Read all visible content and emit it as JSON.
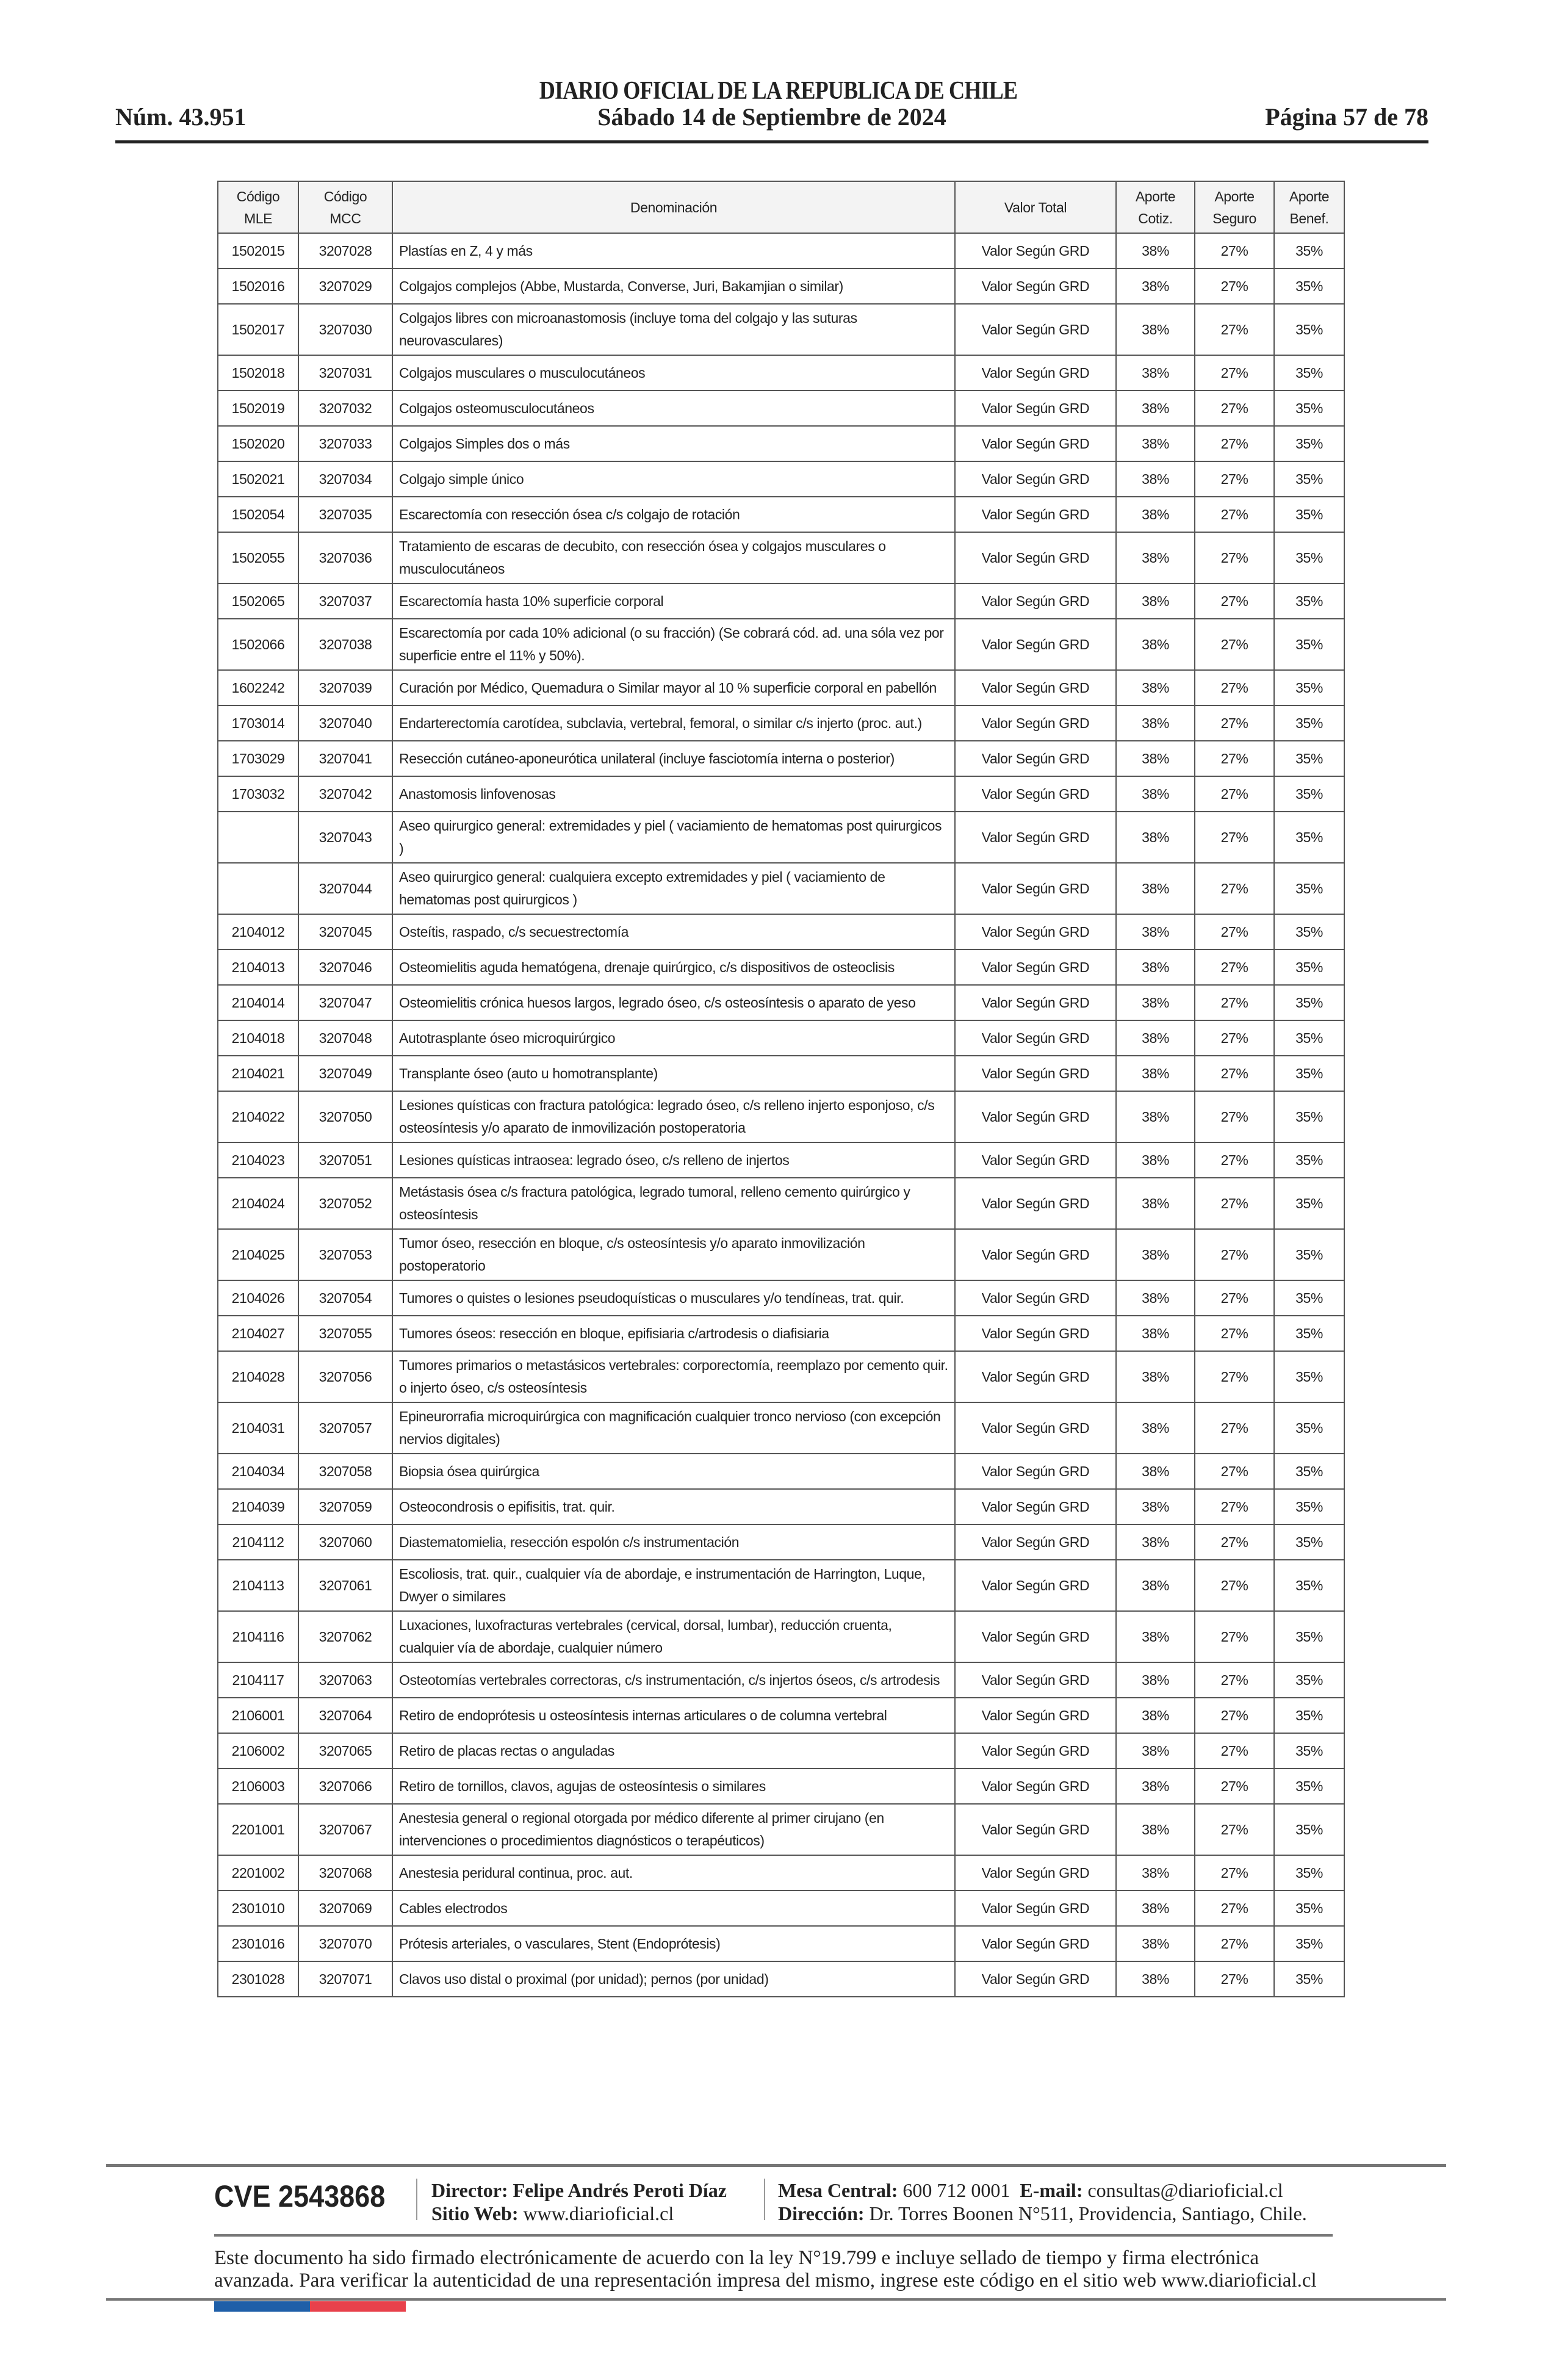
{
  "header": {
    "masthead": "DIARIO OFICIAL DE LA REPUBLICA DE CHILE",
    "issue_number": "Núm. 43.951",
    "date": "Sábado 14 de Septiembre de 2024",
    "page": "Página 57 de 78"
  },
  "table": {
    "headers": {
      "codigo_mle": [
        "Código",
        "MLE"
      ],
      "codigo_mcc": [
        "Código",
        "MCC"
      ],
      "denominacion": "Denominación",
      "valor_total": "Valor Total",
      "aporte_cotiz": [
        "Aporte",
        "Cotiz."
      ],
      "aporte_seguro": [
        "Aporte",
        "Seguro"
      ],
      "aporte_benef": [
        "Aporte",
        "Benef."
      ]
    },
    "rows": [
      {
        "mle": "1502015",
        "mcc": "3207028",
        "den": "Plastías en Z, 4 y más",
        "valor": "Valor Según GRD",
        "cotiz": "38%",
        "seguro": "27%",
        "benef": "35%"
      },
      {
        "mle": "1502016",
        "mcc": "3207029",
        "den": "Colgajos complejos (Abbe, Mustarda, Converse, Juri, Bakamjian o similar)",
        "valor": "Valor Según GRD",
        "cotiz": "38%",
        "seguro": "27%",
        "benef": "35%"
      },
      {
        "mle": "1502017",
        "mcc": "3207030",
        "den": "Colgajos libres con microanastomosis (incluye toma del colgajo y las suturas neurovasculares)",
        "valor": "Valor Según GRD",
        "cotiz": "38%",
        "seguro": "27%",
        "benef": "35%"
      },
      {
        "mle": "1502018",
        "mcc": "3207031",
        "den": "Colgajos musculares o musculocutáneos",
        "valor": "Valor Según GRD",
        "cotiz": "38%",
        "seguro": "27%",
        "benef": "35%"
      },
      {
        "mle": "1502019",
        "mcc": "3207032",
        "den": "Colgajos osteomusculocutáneos",
        "valor": "Valor Según GRD",
        "cotiz": "38%",
        "seguro": "27%",
        "benef": "35%"
      },
      {
        "mle": "1502020",
        "mcc": "3207033",
        "den": "Colgajos Simples dos o más",
        "valor": "Valor Según GRD",
        "cotiz": "38%",
        "seguro": "27%",
        "benef": "35%"
      },
      {
        "mle": "1502021",
        "mcc": "3207034",
        "den": "Colgajo simple único",
        "valor": "Valor Según GRD",
        "cotiz": "38%",
        "seguro": "27%",
        "benef": "35%"
      },
      {
        "mle": "1502054",
        "mcc": "3207035",
        "den": "Escarectomía con resección ósea c/s colgajo de rotación",
        "valor": "Valor Según GRD",
        "cotiz": "38%",
        "seguro": "27%",
        "benef": "35%"
      },
      {
        "mle": "1502055",
        "mcc": "3207036",
        "den": "Tratamiento de escaras de decubito, con resección ósea y colgajos musculares o musculocutáneos",
        "valor": "Valor Según GRD",
        "cotiz": "38%",
        "seguro": "27%",
        "benef": "35%"
      },
      {
        "mle": "1502065",
        "mcc": "3207037",
        "den": "Escarectomía  hasta 10% superficie corporal",
        "valor": "Valor Según GRD",
        "cotiz": "38%",
        "seguro": "27%",
        "benef": "35%"
      },
      {
        "mle": "1502066",
        "mcc": "3207038",
        "den": "Escarectomía por cada 10% adicional (o su fracción) (Se cobrará cód. ad. una sóla vez por superficie entre el 11% y 50%).",
        "valor": "Valor Según GRD",
        "cotiz": "38%",
        "seguro": "27%",
        "benef": "35%"
      },
      {
        "mle": "1602242",
        "mcc": "3207039",
        "den": "Curación por Médico, Quemadura o Similar mayor al 10 %  superficie corporal en pabellón",
        "valor": "Valor Según GRD",
        "cotiz": "38%",
        "seguro": "27%",
        "benef": "35%"
      },
      {
        "mle": "1703014",
        "mcc": "3207040",
        "den": "Endarterectomía carotídea, subclavia, vertebral, femoral, o similar  c/s injerto (proc. aut.)",
        "valor": "Valor Según GRD",
        "cotiz": "38%",
        "seguro": "27%",
        "benef": "35%"
      },
      {
        "mle": "1703029",
        "mcc": "3207041",
        "den": "Resección cutáneo-aponeurótica unilateral (incluye fasciotomía interna o posterior)",
        "valor": "Valor Según GRD",
        "cotiz": "38%",
        "seguro": "27%",
        "benef": "35%"
      },
      {
        "mle": "1703032",
        "mcc": "3207042",
        "den": "Anastomosis linfovenosas",
        "valor": "Valor Según GRD",
        "cotiz": "38%",
        "seguro": "27%",
        "benef": "35%"
      },
      {
        "mle": "",
        "mcc": "3207043",
        "den": "Aseo quirurgico general: extremidades  y  piel ( vaciamiento de hematomas post quirurgicos )",
        "valor": "Valor Según GRD",
        "cotiz": "38%",
        "seguro": "27%",
        "benef": "35%"
      },
      {
        "mle": "",
        "mcc": "3207044",
        "den": "Aseo quirurgico general: cualquiera excepto extremidades y piel ( vaciamiento de hematomas post quirurgicos )",
        "valor": "Valor Según GRD",
        "cotiz": "38%",
        "seguro": "27%",
        "benef": "35%"
      },
      {
        "mle": "2104012",
        "mcc": "3207045",
        "den": "Osteítis, raspado, c/s secuestrectomía",
        "valor": "Valor Según GRD",
        "cotiz": "38%",
        "seguro": "27%",
        "benef": "35%"
      },
      {
        "mle": "2104013",
        "mcc": "3207046",
        "den": "Osteomielitis aguda hematógena, drenaje quirúrgico, c/s dispositivos de osteoclisis",
        "valor": "Valor Según GRD",
        "cotiz": "38%",
        "seguro": "27%",
        "benef": "35%"
      },
      {
        "mle": "2104014",
        "mcc": "3207047",
        "den": "Osteomielitis crónica huesos largos, legrado óseo,  c/s osteosíntesis o aparato de yeso",
        "valor": "Valor Según GRD",
        "cotiz": "38%",
        "seguro": "27%",
        "benef": "35%"
      },
      {
        "mle": "2104018",
        "mcc": "3207048",
        "den": "Autotrasplante óseo microquirúrgico",
        "valor": "Valor Según GRD",
        "cotiz": "38%",
        "seguro": "27%",
        "benef": "35%"
      },
      {
        "mle": "2104021",
        "mcc": "3207049",
        "den": "Transplante óseo  (auto u homotransplante)",
        "valor": "Valor Según GRD",
        "cotiz": "38%",
        "seguro": "27%",
        "benef": "35%"
      },
      {
        "mle": "2104022",
        "mcc": "3207050",
        "den": "Lesiones quísticas con fractura patológica: legrado óseo, c/s relleno injerto esponjoso, c/s osteosíntesis y/o aparato de inmovilización postoperatoria",
        "valor": "Valor Según GRD",
        "cotiz": "38%",
        "seguro": "27%",
        "benef": "35%"
      },
      {
        "mle": "2104023",
        "mcc": "3207051",
        "den": "Lesiones quísticas intraosea: legrado óseo, c/s relleno de injertos",
        "valor": "Valor Según GRD",
        "cotiz": "38%",
        "seguro": "27%",
        "benef": "35%"
      },
      {
        "mle": "2104024",
        "mcc": "3207052",
        "den": "Metástasis ósea c/s fractura patológica, legrado tumoral, relleno cemento quirúrgico y osteosíntesis",
        "valor": "Valor Según GRD",
        "cotiz": "38%",
        "seguro": "27%",
        "benef": "35%"
      },
      {
        "mle": "2104025",
        "mcc": "3207053",
        "den": "Tumor óseo, resección en bloque, c/s osteosíntesis y/o aparato inmovilización postoperatorio",
        "valor": "Valor Según GRD",
        "cotiz": "38%",
        "seguro": "27%",
        "benef": "35%"
      },
      {
        "mle": "2104026",
        "mcc": "3207054",
        "den": "Tumores o quistes o lesiones pseudoquísticas o musculares y/o tendíneas, trat. quir.",
        "valor": "Valor Según GRD",
        "cotiz": "38%",
        "seguro": "27%",
        "benef": "35%"
      },
      {
        "mle": "2104027",
        "mcc": "3207055",
        "den": "Tumores óseos: resección en bloque, epifisiaria c/artrodesis o diafisiaria",
        "valor": "Valor Según GRD",
        "cotiz": "38%",
        "seguro": "27%",
        "benef": "35%"
      },
      {
        "mle": "2104028",
        "mcc": "3207056",
        "den": "Tumores primarios o metastásicos vertebrales: corporectomía, reemplazo por cemento quir. o injerto óseo, c/s osteosíntesis",
        "valor": "Valor Según GRD",
        "cotiz": "38%",
        "seguro": "27%",
        "benef": "35%"
      },
      {
        "mle": "2104031",
        "mcc": "3207057",
        "den": "Epineurorrafia microquirúrgica con magnificación cualquier tronco nervioso (con excepción nervios digitales)",
        "valor": "Valor Según GRD",
        "cotiz": "38%",
        "seguro": "27%",
        "benef": "35%"
      },
      {
        "mle": "2104034",
        "mcc": "3207058",
        "den": "Biopsia ósea quirúrgica",
        "valor": "Valor Según GRD",
        "cotiz": "38%",
        "seguro": "27%",
        "benef": "35%"
      },
      {
        "mle": "2104039",
        "mcc": "3207059",
        "den": "Osteocondrosis o epifisitis, trat. quir.",
        "valor": "Valor Según GRD",
        "cotiz": "38%",
        "seguro": "27%",
        "benef": "35%"
      },
      {
        "mle": "2104112",
        "mcc": "3207060",
        "den": "Diastematomielia, resección espolón c/s instrumentación",
        "valor": "Valor Según GRD",
        "cotiz": "38%",
        "seguro": "27%",
        "benef": "35%"
      },
      {
        "mle": "2104113",
        "mcc": "3207061",
        "den": "Escoliosis, trat. quir., cualquier vía de abordaje, e instrumentación de Harrington,  Luque, Dwyer o similares",
        "valor": "Valor Según GRD",
        "cotiz": "38%",
        "seguro": "27%",
        "benef": "35%"
      },
      {
        "mle": "2104116",
        "mcc": "3207062",
        "den": "Luxaciones, luxofracturas vertebrales (cervical, dorsal, lumbar), reducción cruenta, cualquier vía de abordaje, cualquier número",
        "valor": "Valor Según GRD",
        "cotiz": "38%",
        "seguro": "27%",
        "benef": "35%"
      },
      {
        "mle": "2104117",
        "mcc": "3207063",
        "den": "Osteotomías vertebrales correctoras, c/s instrumentación, c/s injertos óseos, c/s artrodesis",
        "valor": "Valor Según GRD",
        "cotiz": "38%",
        "seguro": "27%",
        "benef": "35%"
      },
      {
        "mle": "2106001",
        "mcc": "3207064",
        "den": "Retiro de endoprótesis u osteosíntesis internas articulares o de columna vertebral",
        "valor": "Valor Según GRD",
        "cotiz": "38%",
        "seguro": "27%",
        "benef": "35%"
      },
      {
        "mle": "2106002",
        "mcc": "3207065",
        "den": "Retiro de placas rectas o anguladas",
        "valor": "Valor Según GRD",
        "cotiz": "38%",
        "seguro": "27%",
        "benef": "35%"
      },
      {
        "mle": "2106003",
        "mcc": "3207066",
        "den": "Retiro de tornillos, clavos, agujas de osteosíntesis o similares",
        "valor": "Valor Según GRD",
        "cotiz": "38%",
        "seguro": "27%",
        "benef": "35%"
      },
      {
        "mle": "2201001",
        "mcc": "3207067",
        "den": "Anestesia general o regional otorgada por médico diferente al primer cirujano (en intervenciones o procedimientos diagnósticos o terapéuticos)",
        "valor": "Valor Según GRD",
        "cotiz": "38%",
        "seguro": "27%",
        "benef": "35%"
      },
      {
        "mle": "2201002",
        "mcc": "3207068",
        "den": "Anestesia peridural continua, proc. aut.",
        "valor": "Valor Según GRD",
        "cotiz": "38%",
        "seguro": "27%",
        "benef": "35%"
      },
      {
        "mle": "2301010",
        "mcc": "3207069",
        "den": "Cables electrodos",
        "valor": "Valor Según GRD",
        "cotiz": "38%",
        "seguro": "27%",
        "benef": "35%"
      },
      {
        "mle": "2301016",
        "mcc": "3207070",
        "den": "Prótesis arteriales, o vasculares, Stent (Endoprótesis)",
        "valor": "Valor Según GRD",
        "cotiz": "38%",
        "seguro": "27%",
        "benef": "35%"
      },
      {
        "mle": "2301028",
        "mcc": "3207071",
        "den": "Clavos uso distal o proximal (por unidad); pernos (por unidad)",
        "valor": "Valor Según GRD",
        "cotiz": "38%",
        "seguro": "27%",
        "benef": "35%"
      }
    ]
  },
  "footer": {
    "cve": "CVE 2543868",
    "director_label": "Director:",
    "director_name": "Felipe Andrés Peroti Díaz",
    "website_label": "Sitio Web:",
    "website": "www.diarioficial.cl",
    "phone_label": "Mesa Central:",
    "phone": "600 712 0001",
    "email_label": "E-mail:",
    "email": "consultas@diarioficial.cl",
    "address_label": "Dirección:",
    "address": "Dr. Torres Boonen N°511, Providencia, Santiago, Chile.",
    "legal_notice": "Este documento ha sido firmado electrónicamente de acuerdo con la ley N°19.799 e incluye sellado de tiempo y firma electrónica avanzada. Para verificar la autenticidad de una representación impresa del mismo, ingrese este código en el sitio web www.diarioficial.cl",
    "flag_colors": {
      "blue": "#1f5fa8",
      "red": "#e8414b"
    }
  }
}
